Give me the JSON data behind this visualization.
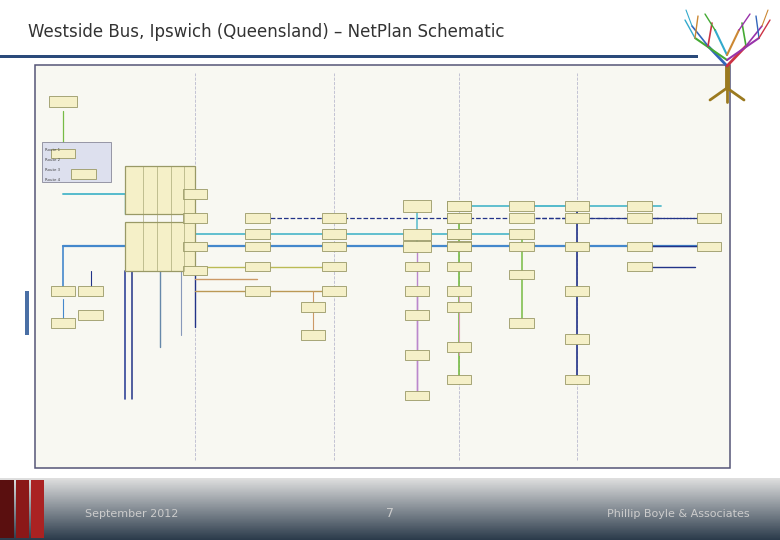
{
  "title": "Westside Bus, Ipswich (Queensland) – NetPlan Schematic",
  "title_fontsize": 12,
  "title_color": "#333333",
  "header_line_color": "#2a4a7a",
  "footer_left": "September 2012",
  "footer_center": "7",
  "footer_right": "Phillip Boyle & Associates",
  "footer_fontsize": 8,
  "footer_text_color": "#cccccc",
  "diagram_bg": "#f8f8f2",
  "diagram_border": "#555577",
  "background_color": "#ffffff",
  "box_color": "#f5f0c8",
  "box_edge": "#999966",
  "colors": {
    "blue": "#4488cc",
    "cyan": "#55bbcc",
    "green": "#77bb44",
    "purple": "#bb88cc",
    "pink": "#dd99bb",
    "olive": "#bbbb55",
    "tan": "#cc9966",
    "dark_blue": "#223388",
    "navy": "#334499",
    "teal": "#44aaaa"
  }
}
